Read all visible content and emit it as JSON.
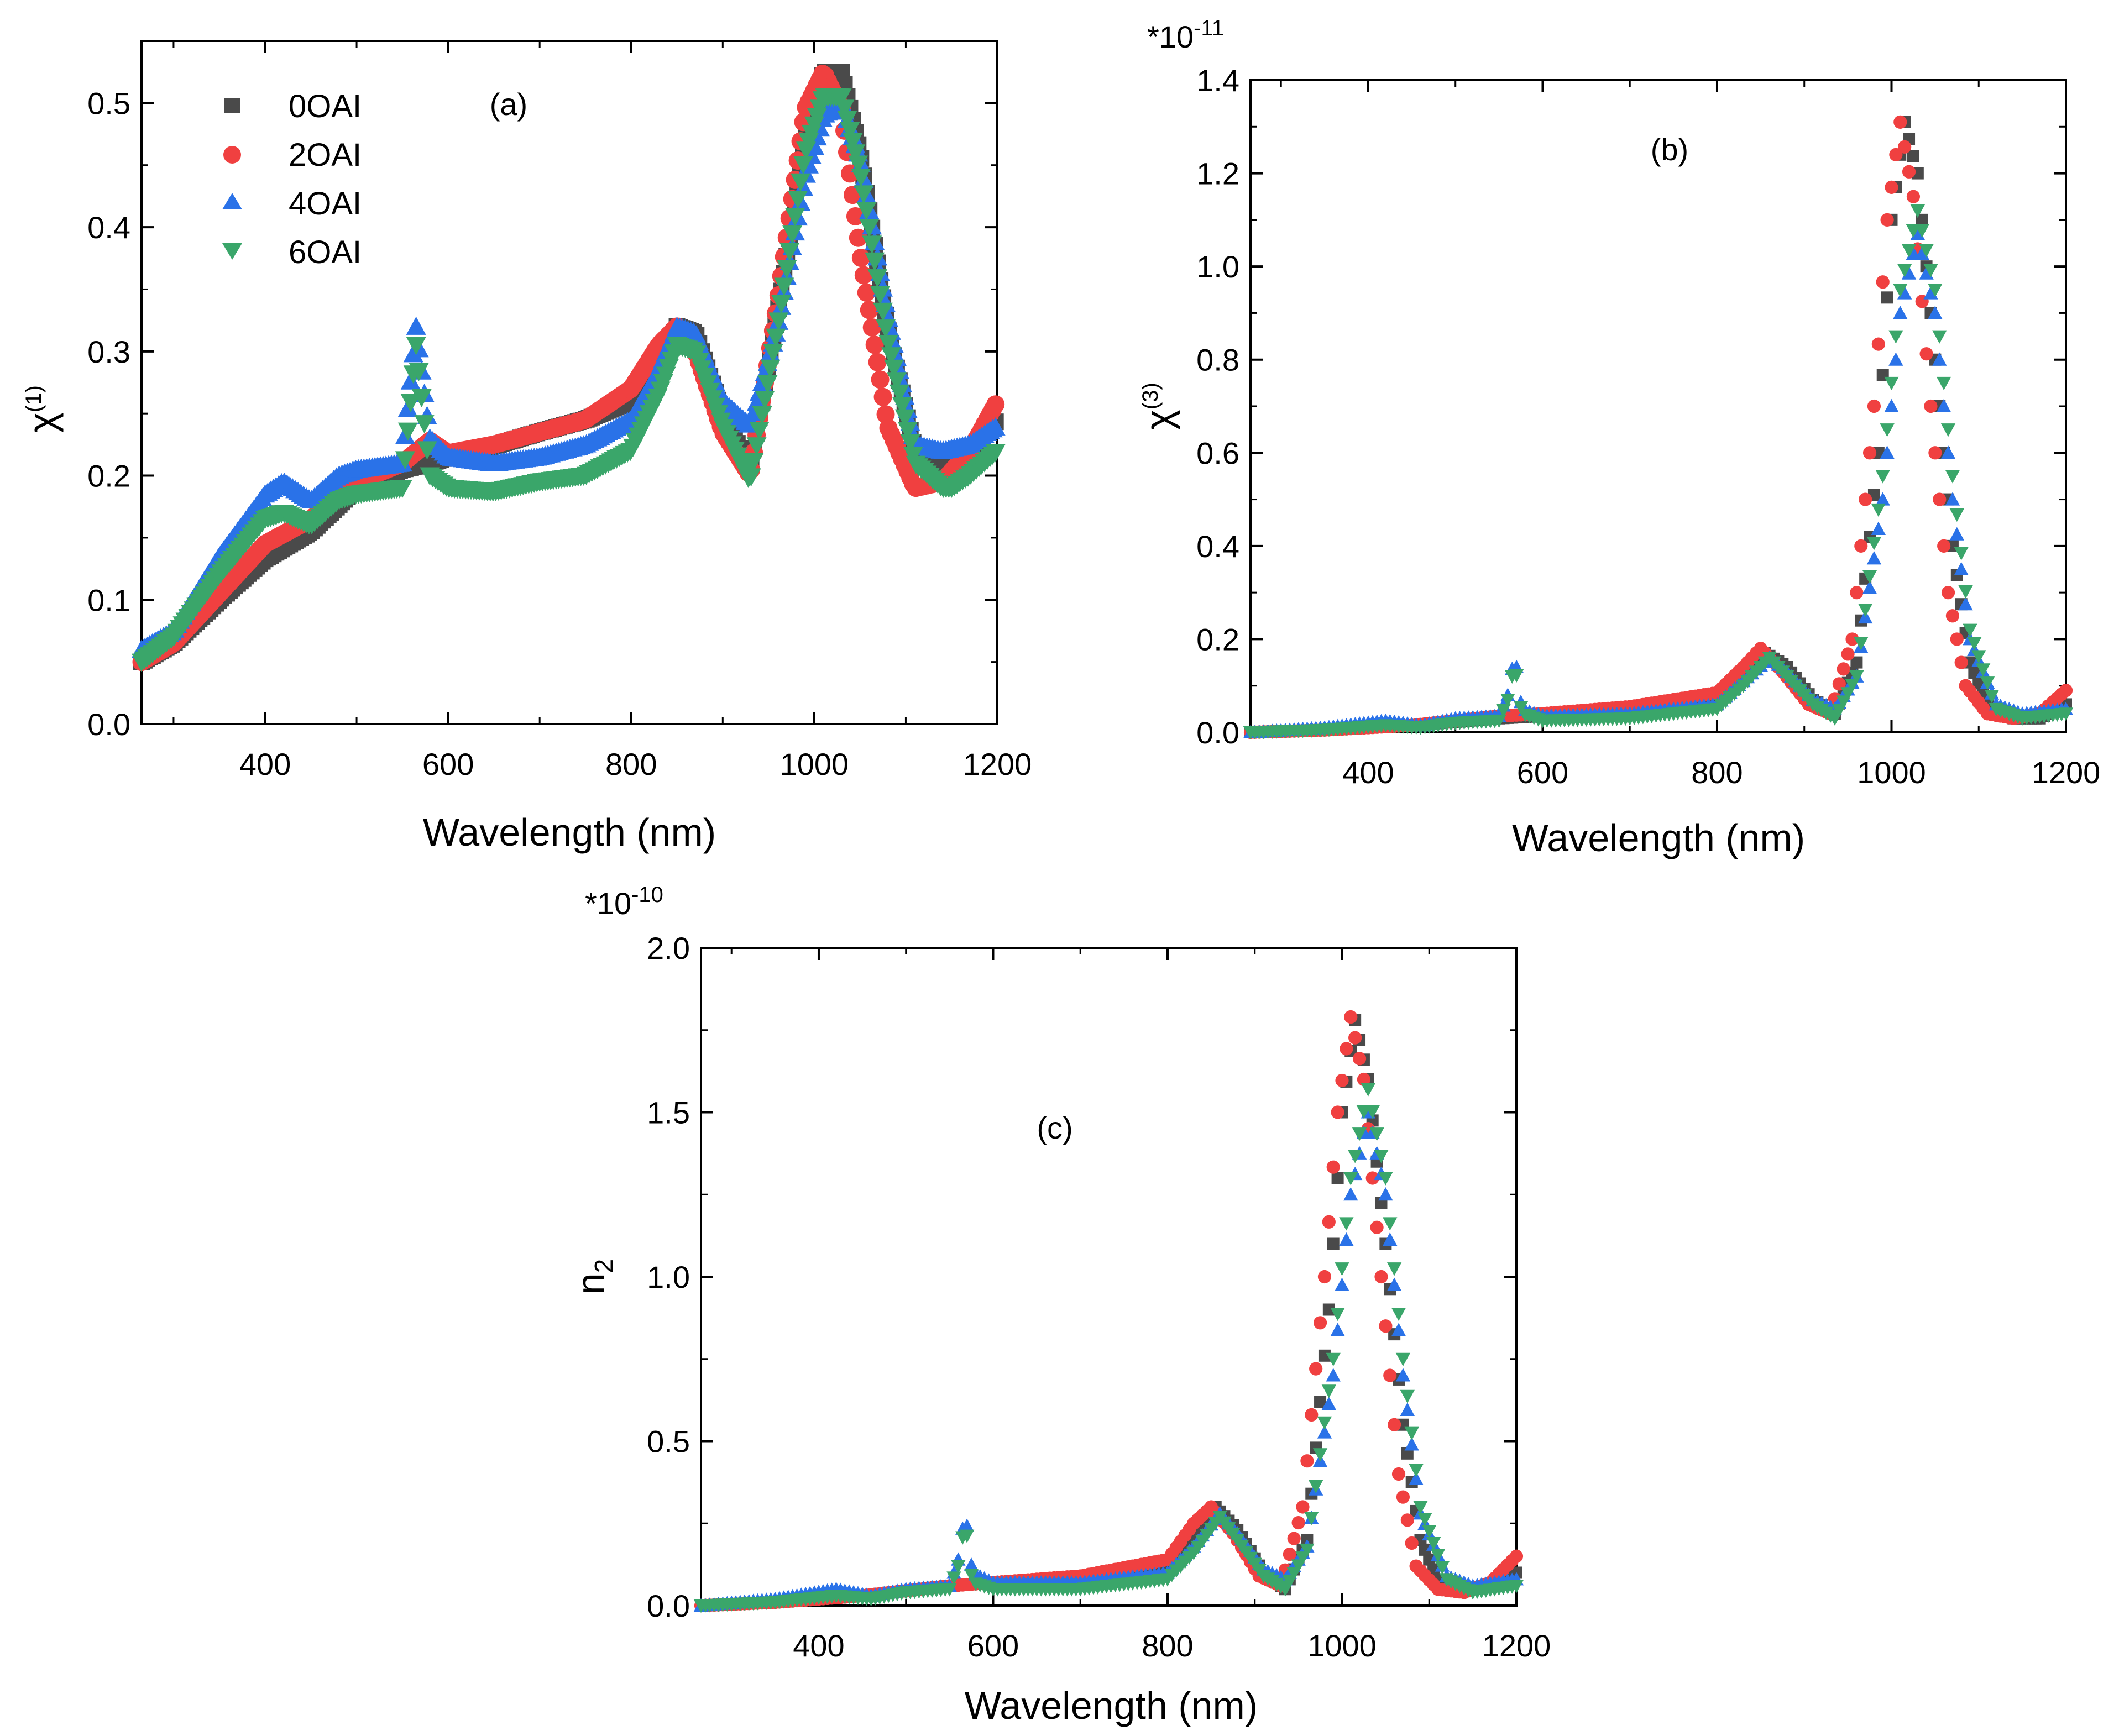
{
  "colors": {
    "0OAI": "#4a4a4a",
    "2OAI": "#f04040",
    "4OAI": "#2a72e8",
    "6OAI": "#3aa66a"
  },
  "legend": [
    {
      "name": "0OAI",
      "marker": "square"
    },
    {
      "name": "2OAI",
      "marker": "circle"
    },
    {
      "name": "4OAI",
      "marker": "triangle-up"
    },
    {
      "name": "6OAI",
      "marker": "triangle-down"
    }
  ],
  "chart_data": [
    {
      "id": "a",
      "type": "scatter",
      "panel_label": "(a)",
      "xlabel": "Wavelength (nm)",
      "ylabel_main": "χ",
      "ylabel_sup": "(1)",
      "xlim": [
        265,
        1200
      ],
      "ylim": [
        0,
        0.55
      ],
      "xticks": [
        400,
        600,
        800,
        1000,
        1200
      ],
      "xtick_labels": [
        "400",
        "600",
        "800",
        "1000",
        "1200"
      ],
      "yticks": [
        0.0,
        0.1,
        0.2,
        0.3,
        0.4,
        0.5
      ],
      "ytick_labels": [
        "0.0",
        "0.1",
        "0.2",
        "0.3",
        "0.4",
        "0.5"
      ],
      "multiplier": "",
      "legend_position": "top-left",
      "series": [
        {
          "name": "0OAI",
          "x": [
            265,
            300,
            350,
            400,
            450,
            500,
            550,
            580,
            600,
            650,
            700,
            750,
            800,
            830,
            850,
            870,
            900,
            930,
            960,
            990,
            1010,
            1030,
            1050,
            1080,
            1110,
            1140,
            1170,
            1200
          ],
          "y": [
            0.05,
            0.065,
            0.1,
            0.133,
            0.155,
            0.19,
            0.205,
            0.21,
            0.215,
            0.224,
            0.235,
            0.245,
            0.26,
            0.29,
            0.32,
            0.315,
            0.25,
            0.205,
            0.33,
            0.47,
            0.525,
            0.525,
            0.46,
            0.32,
            0.22,
            0.205,
            0.22,
            0.245
          ]
        },
        {
          "name": "2OAI",
          "x": [
            265,
            300,
            350,
            400,
            450,
            500,
            550,
            580,
            600,
            650,
            700,
            750,
            800,
            830,
            850,
            870,
            900,
            930,
            960,
            990,
            1010,
            1030,
            1050,
            1080,
            1110,
            1140,
            1170,
            1200
          ],
          "y": [
            0.05,
            0.065,
            0.105,
            0.145,
            0.165,
            0.195,
            0.21,
            0.228,
            0.218,
            0.225,
            0.235,
            0.245,
            0.27,
            0.305,
            0.32,
            0.3,
            0.235,
            0.2,
            0.34,
            0.495,
            0.525,
            0.495,
            0.38,
            0.24,
            0.19,
            0.195,
            0.22,
            0.26
          ]
        },
        {
          "name": "4OAI",
          "x": [
            265,
            300,
            350,
            400,
            420,
            450,
            480,
            500,
            550,
            565,
            580,
            600,
            650,
            700,
            750,
            800,
            830,
            850,
            870,
            900,
            930,
            960,
            990,
            1010,
            1030,
            1050,
            1080,
            1110,
            1140,
            1170,
            1200
          ],
          "y": [
            0.06,
            0.075,
            0.135,
            0.185,
            0.195,
            0.18,
            0.2,
            0.205,
            0.21,
            0.32,
            0.23,
            0.215,
            0.21,
            0.215,
            0.225,
            0.245,
            0.285,
            0.32,
            0.315,
            0.26,
            0.24,
            0.32,
            0.44,
            0.49,
            0.5,
            0.455,
            0.33,
            0.225,
            0.22,
            0.225,
            0.24
          ]
        },
        {
          "name": "6OAI",
          "x": [
            265,
            300,
            350,
            400,
            420,
            450,
            480,
            500,
            550,
            565,
            580,
            600,
            650,
            700,
            750,
            800,
            830,
            850,
            870,
            900,
            930,
            960,
            990,
            1010,
            1030,
            1050,
            1080,
            1110,
            1140,
            1150,
            1170,
            1200
          ],
          "y": [
            0.05,
            0.07,
            0.12,
            0.165,
            0.17,
            0.16,
            0.18,
            0.185,
            0.19,
            0.305,
            0.2,
            0.19,
            0.187,
            0.195,
            0.2,
            0.22,
            0.265,
            0.305,
            0.3,
            0.24,
            0.195,
            0.32,
            0.46,
            0.505,
            0.505,
            0.445,
            0.31,
            0.21,
            0.19,
            0.19,
            0.2,
            0.22
          ]
        }
      ]
    },
    {
      "id": "b",
      "type": "scatter",
      "panel_label": "(b)",
      "xlabel": "Wavelength (nm)",
      "ylabel_main": "χ",
      "ylabel_sup": "(3)",
      "xlim": [
        265,
        1200
      ],
      "ylim": [
        0,
        1.4
      ],
      "xticks": [
        400,
        600,
        800,
        1000,
        1200
      ],
      "xtick_labels": [
        "400",
        "600",
        "800",
        "1000",
        "1200"
      ],
      "yticks": [
        0.0,
        0.2,
        0.4,
        0.6,
        0.8,
        1.0,
        1.2,
        1.4
      ],
      "ytick_labels": [
        "0.0",
        "0.2",
        "0.4",
        "0.6",
        "0.8",
        "1.0",
        "1.2",
        "1.4"
      ],
      "multiplier_base": "*10",
      "multiplier_exp": "-11",
      "series": [
        {
          "name": "0OAI",
          "x": [
            265,
            350,
            450,
            550,
            600,
            700,
            800,
            830,
            855,
            880,
            910,
            935,
            960,
            985,
            1000,
            1015,
            1030,
            1050,
            1070,
            1090,
            1110,
            1140,
            1170,
            1200
          ],
          "y": [
            0.0,
            0.005,
            0.015,
            0.03,
            0.035,
            0.045,
            0.07,
            0.12,
            0.17,
            0.14,
            0.07,
            0.04,
            0.15,
            0.6,
            1.1,
            1.31,
            1.2,
            0.8,
            0.4,
            0.15,
            0.06,
            0.03,
            0.03,
            0.06
          ]
        },
        {
          "name": "2OAI",
          "x": [
            265,
            350,
            450,
            550,
            600,
            700,
            800,
            830,
            850,
            875,
            905,
            930,
            955,
            980,
            995,
            1010,
            1025,
            1045,
            1065,
            1085,
            1110,
            1140,
            1170,
            1200
          ],
          "y": [
            0.0,
            0.005,
            0.015,
            0.035,
            0.04,
            0.055,
            0.085,
            0.14,
            0.18,
            0.13,
            0.06,
            0.04,
            0.2,
            0.7,
            1.1,
            1.31,
            1.15,
            0.7,
            0.3,
            0.1,
            0.04,
            0.03,
            0.04,
            0.09
          ]
        },
        {
          "name": "4OAI",
          "x": [
            265,
            350,
            420,
            460,
            500,
            550,
            560,
            568,
            576,
            600,
            700,
            800,
            830,
            860,
            880,
            910,
            935,
            960,
            990,
            1010,
            1030,
            1050,
            1070,
            1090,
            1120,
            1150,
            1200
          ],
          "y": [
            0.0,
            0.01,
            0.025,
            0.015,
            0.03,
            0.035,
            0.08,
            0.17,
            0.05,
            0.035,
            0.04,
            0.06,
            0.11,
            0.16,
            0.13,
            0.07,
            0.05,
            0.12,
            0.5,
            0.9,
            1.07,
            0.9,
            0.5,
            0.2,
            0.06,
            0.04,
            0.05
          ]
        },
        {
          "name": "6OAI",
          "x": [
            265,
            350,
            420,
            460,
            500,
            550,
            560,
            568,
            576,
            600,
            700,
            800,
            830,
            860,
            880,
            910,
            935,
            960,
            990,
            1010,
            1030,
            1050,
            1070,
            1090,
            1120,
            1150,
            1200
          ],
          "y": [
            0.0,
            0.005,
            0.015,
            0.01,
            0.02,
            0.025,
            0.07,
            0.15,
            0.04,
            0.025,
            0.03,
            0.05,
            0.1,
            0.16,
            0.12,
            0.06,
            0.03,
            0.12,
            0.55,
            0.95,
            1.12,
            0.95,
            0.55,
            0.22,
            0.05,
            0.03,
            0.04
          ]
        }
      ]
    },
    {
      "id": "c",
      "type": "scatter",
      "panel_label": "(c)",
      "xlabel": "Wavelength (nm)",
      "ylabel_main": "n",
      "ylabel_sub": "2",
      "xlim": [
        265,
        1200
      ],
      "ylim": [
        0,
        2.0
      ],
      "xticks": [
        400,
        600,
        800,
        1000,
        1200
      ],
      "xtick_labels": [
        "400",
        "600",
        "800",
        "1000",
        "1200"
      ],
      "yticks": [
        0.0,
        0.5,
        1.0,
        1.5,
        2.0
      ],
      "ytick_labels": [
        "0.0",
        "0.5",
        "1.0",
        "1.5",
        "2.0"
      ],
      "multiplier_base": "*10",
      "multiplier_exp": "-10",
      "series": [
        {
          "name": "0OAI",
          "x": [
            265,
            350,
            450,
            550,
            600,
            700,
            800,
            830,
            855,
            880,
            910,
            935,
            960,
            985,
            1000,
            1015,
            1030,
            1050,
            1070,
            1090,
            1110,
            1140,
            1170,
            1200
          ],
          "y": [
            0.0,
            0.01,
            0.03,
            0.06,
            0.07,
            0.08,
            0.12,
            0.2,
            0.3,
            0.23,
            0.1,
            0.05,
            0.2,
            0.9,
            1.5,
            1.78,
            1.6,
            1.1,
            0.55,
            0.2,
            0.08,
            0.05,
            0.06,
            0.1
          ]
        },
        {
          "name": "2OAI",
          "x": [
            265,
            350,
            450,
            550,
            600,
            700,
            800,
            830,
            850,
            875,
            905,
            930,
            955,
            980,
            995,
            1010,
            1025,
            1045,
            1065,
            1085,
            1110,
            1140,
            1170,
            1200
          ],
          "y": [
            0.0,
            0.01,
            0.03,
            0.06,
            0.07,
            0.09,
            0.14,
            0.25,
            0.3,
            0.22,
            0.09,
            0.06,
            0.3,
            1.0,
            1.5,
            1.79,
            1.6,
            1.0,
            0.4,
            0.12,
            0.05,
            0.04,
            0.07,
            0.15
          ]
        },
        {
          "name": "4OAI",
          "x": [
            265,
            350,
            420,
            460,
            500,
            550,
            560,
            568,
            576,
            600,
            700,
            800,
            830,
            860,
            880,
            910,
            935,
            960,
            990,
            1010,
            1030,
            1050,
            1070,
            1090,
            1120,
            1150,
            1200
          ],
          "y": [
            0.0,
            0.02,
            0.05,
            0.03,
            0.05,
            0.06,
            0.14,
            0.29,
            0.1,
            0.07,
            0.07,
            0.1,
            0.18,
            0.28,
            0.22,
            0.11,
            0.08,
            0.18,
            0.7,
            1.25,
            1.5,
            1.25,
            0.7,
            0.28,
            0.09,
            0.06,
            0.08
          ]
        },
        {
          "name": "6OAI",
          "x": [
            265,
            350,
            420,
            460,
            500,
            550,
            560,
            568,
            576,
            600,
            700,
            800,
            830,
            860,
            880,
            910,
            935,
            960,
            990,
            1010,
            1030,
            1050,
            1070,
            1090,
            1120,
            1150,
            1200
          ],
          "y": [
            0.0,
            0.01,
            0.03,
            0.02,
            0.04,
            0.05,
            0.12,
            0.26,
            0.07,
            0.05,
            0.05,
            0.08,
            0.16,
            0.27,
            0.2,
            0.09,
            0.05,
            0.17,
            0.75,
            1.3,
            1.57,
            1.3,
            0.75,
            0.3,
            0.08,
            0.04,
            0.06
          ]
        }
      ]
    }
  ]
}
